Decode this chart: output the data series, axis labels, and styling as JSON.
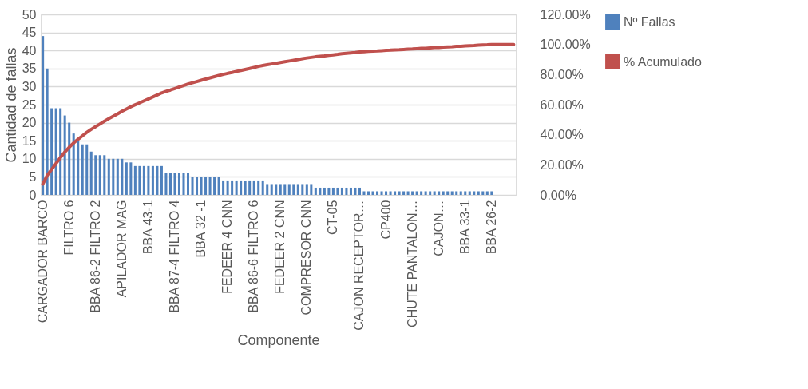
{
  "chart_data": {
    "type": "bar",
    "xlabel": "Componente",
    "ylabel": "Cantidad de fallas",
    "categories": [
      "CARGADOR BARCO",
      null,
      null,
      null,
      null,
      null,
      "FILTRO 6",
      null,
      null,
      null,
      null,
      null,
      "BBA 86-2 FILTRO 2",
      null,
      null,
      null,
      null,
      null,
      "APILADOR MAG",
      null,
      null,
      null,
      null,
      null,
      "BBA 43-1",
      null,
      null,
      null,
      null,
      null,
      "BBA 87-4 FILTRO 4",
      null,
      null,
      null,
      null,
      null,
      "BBA 32 -1",
      null,
      null,
      null,
      null,
      null,
      "FEDEER 4 CNN",
      null,
      null,
      null,
      null,
      null,
      "BBA 86-6 FILTRO 6",
      null,
      null,
      null,
      null,
      null,
      "FEDEER 2 CNN",
      null,
      null,
      null,
      null,
      null,
      "COMPRESOR CNN",
      null,
      null,
      null,
      null,
      null,
      "CT-05",
      null,
      null,
      null,
      null,
      null,
      "CAJON RECEPTOR…",
      null,
      null,
      null,
      null,
      null,
      "CP400",
      null,
      null,
      null,
      null,
      null,
      "CHUTE PANTALON…",
      null,
      null,
      null,
      null,
      null,
      "CAJON…",
      null,
      null,
      null,
      null,
      null,
      "BBA 33-1",
      null,
      null,
      null,
      null,
      null,
      "BBA 26-2",
      null,
      null,
      null,
      null,
      null
    ],
    "series": [
      {
        "name": "Nº Fallas",
        "color": "#4f81bd",
        "values": [
          44,
          35,
          24,
          24,
          24,
          22,
          20,
          17,
          15,
          14,
          14,
          12,
          11,
          11,
          11,
          10,
          10,
          10,
          10,
          9,
          9,
          8,
          8,
          8,
          8,
          8,
          8,
          8,
          6,
          6,
          6,
          6,
          6,
          6,
          5,
          5,
          5,
          5,
          5,
          5,
          5,
          4,
          4,
          4,
          4,
          4,
          4,
          4,
          4,
          4,
          4,
          3,
          3,
          3,
          3,
          3,
          3,
          3,
          3,
          3,
          3,
          3,
          2,
          2,
          2,
          2,
          2,
          2,
          2,
          2,
          2,
          2,
          2,
          1,
          1,
          1,
          1,
          1,
          1,
          1,
          1,
          1,
          1,
          1,
          1,
          1,
          1,
          1,
          1,
          1,
          1,
          1,
          1,
          1,
          1,
          1,
          1,
          1,
          1,
          1,
          1,
          1,
          1,
          0,
          0,
          0,
          0,
          0
        ]
      },
      {
        "name": "% Acumulado",
        "color": "#c0504d",
        "type": "line",
        "axis": "y2",
        "values": [
          7.2,
          13.0,
          16.9,
          20.9,
          24.8,
          28.5,
          31.7,
          34.5,
          37.0,
          39.3,
          41.6,
          43.6,
          45.4,
          47.2,
          49.0,
          50.7,
          52.3,
          53.9,
          55.6,
          57.1,
          58.6,
          59.9,
          61.2,
          62.5,
          63.8,
          65.1,
          66.4,
          67.8,
          68.8,
          69.7,
          70.7,
          71.7,
          72.7,
          73.7,
          74.5,
          75.3,
          76.2,
          77.0,
          77.8,
          78.6,
          79.4,
          80.1,
          80.8,
          81.4,
          82.1,
          82.7,
          83.4,
          84.0,
          84.7,
          85.4,
          86.0,
          86.5,
          87.0,
          87.5,
          88.0,
          88.5,
          89.0,
          89.5,
          90.0,
          90.5,
          91.0,
          91.4,
          91.8,
          92.1,
          92.4,
          92.8,
          93.1,
          93.4,
          93.8,
          94.1,
          94.4,
          94.7,
          95.1,
          95.2,
          95.4,
          95.6,
          95.7,
          95.9,
          96.1,
          96.2,
          96.4,
          96.5,
          96.7,
          96.9,
          97.0,
          97.2,
          97.4,
          97.5,
          97.7,
          97.9,
          98.0,
          98.2,
          98.4,
          98.5,
          98.7,
          98.8,
          99.0,
          99.2,
          99.3,
          99.5,
          99.7,
          99.8,
          100.0,
          100.0,
          100.0,
          100.0,
          100.0,
          100.0
        ]
      }
    ],
    "ylim": [
      0,
      50
    ],
    "yticks": [
      0,
      5,
      10,
      15,
      20,
      25,
      30,
      35,
      40,
      45,
      50
    ],
    "y2lim": [
      0,
      120
    ],
    "y2ticks": [
      {
        "value": 0,
        "label": "0.00%"
      },
      {
        "value": 20,
        "label": "20.00%"
      },
      {
        "value": 40,
        "label": "40.00%"
      },
      {
        "value": 60,
        "label": "60.00%"
      },
      {
        "value": 80,
        "label": "80.00%"
      },
      {
        "value": 100,
        "label": "100.00%"
      },
      {
        "value": 120,
        "label": "120.00%"
      }
    ],
    "grid": "y",
    "legend": "right"
  }
}
